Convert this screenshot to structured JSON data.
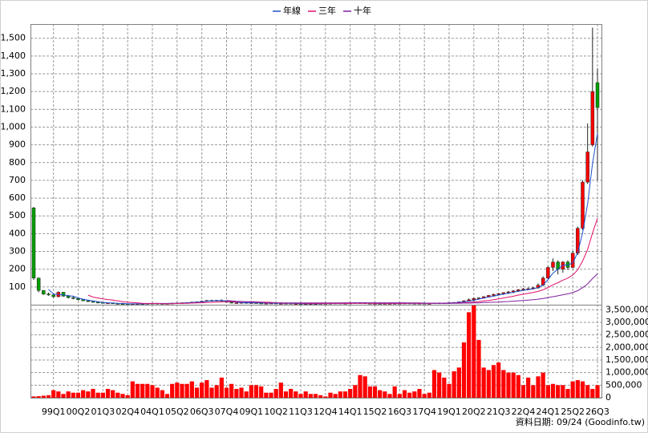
{
  "footer": "資料日期: 09/24 (Goodinfo.tw)",
  "chart_data": [
    {
      "type": "candlestick",
      "up_color": "#ff0000",
      "down_color": "#00a000",
      "grid": true,
      "legend": "top",
      "ylim": [
        0,
        1580
      ],
      "yticks": [
        100,
        200,
        300,
        400,
        500,
        600,
        700,
        800,
        900,
        {
          "value": 1000,
          "label": "1,000"
        },
        {
          "value": 1100,
          "label": "1,100"
        },
        {
          "value": 1200,
          "label": "1,200"
        },
        {
          "value": 1300,
          "label": "1,300"
        },
        {
          "value": 1400,
          "label": "1,400"
        },
        {
          "value": 1500,
          "label": "1,500"
        }
      ],
      "ohlc": [
        [
          545,
          550,
          140,
          150
        ],
        [
          150,
          152,
          70,
          80
        ],
        [
          80,
          82,
          55,
          60
        ],
        [
          60,
          68,
          50,
          55
        ],
        [
          55,
          60,
          40,
          45
        ],
        [
          45,
          75,
          42,
          70
        ],
        [
          70,
          72,
          45,
          48
        ],
        [
          48,
          55,
          35,
          40
        ],
        [
          40,
          50,
          30,
          35
        ],
        [
          35,
          40,
          25,
          28
        ],
        [
          28,
          32,
          20,
          22
        ],
        [
          22,
          25,
          15,
          18
        ],
        [
          18,
          22,
          12,
          14
        ],
        [
          14,
          18,
          10,
          12
        ],
        [
          12,
          14,
          8,
          9
        ],
        [
          9,
          12,
          7,
          10
        ],
        [
          10,
          11,
          6,
          7
        ],
        [
          7,
          9,
          5,
          6
        ],
        [
          6,
          7,
          3,
          4
        ],
        [
          4,
          5,
          2,
          3
        ],
        [
          3,
          6,
          3,
          5
        ],
        [
          5,
          7,
          4,
          6
        ],
        [
          6,
          7,
          4,
          5
        ],
        [
          5,
          8,
          4,
          7
        ],
        [
          7,
          9,
          6,
          8
        ],
        [
          8,
          9,
          6,
          7
        ],
        [
          7,
          8,
          5,
          6
        ],
        [
          6,
          8,
          5,
          7
        ],
        [
          7,
          10,
          6,
          9
        ],
        [
          9,
          11,
          8,
          10
        ],
        [
          10,
          12,
          8,
          11
        ],
        [
          11,
          13,
          9,
          12
        ],
        [
          12,
          16,
          11,
          15
        ],
        [
          15,
          18,
          13,
          16
        ],
        [
          16,
          22,
          15,
          20
        ],
        [
          20,
          26,
          18,
          24
        ],
        [
          24,
          28,
          20,
          22
        ],
        [
          22,
          27,
          20,
          25
        ],
        [
          25,
          30,
          20,
          22
        ],
        [
          22,
          24,
          12,
          14
        ],
        [
          14,
          16,
          8,
          9
        ],
        [
          9,
          12,
          7,
          11
        ],
        [
          11,
          14,
          10,
          12
        ],
        [
          12,
          13,
          9,
          10
        ],
        [
          10,
          12,
          9,
          11
        ],
        [
          11,
          12,
          8,
          9
        ],
        [
          9,
          10,
          7,
          8
        ],
        [
          8,
          9,
          7,
          8
        ],
        [
          8,
          10,
          7,
          9
        ],
        [
          9,
          10,
          6,
          7
        ],
        [
          7,
          8,
          6,
          7
        ],
        [
          7,
          9,
          6,
          8
        ],
        [
          8,
          9,
          6,
          6
        ],
        [
          6,
          7,
          5,
          6
        ],
        [
          6,
          7,
          5,
          5
        ],
        [
          5,
          6,
          4,
          5
        ],
        [
          5,
          7,
          5,
          6
        ],
        [
          6,
          7,
          5,
          6
        ],
        [
          6,
          8,
          5,
          7
        ],
        [
          7,
          8,
          6,
          7
        ],
        [
          7,
          9,
          6,
          8
        ],
        [
          8,
          10,
          7,
          9
        ],
        [
          9,
          10,
          7,
          8
        ],
        [
          8,
          9,
          7,
          8
        ],
        [
          8,
          10,
          7,
          9
        ],
        [
          9,
          12,
          8,
          11
        ],
        [
          11,
          14,
          9,
          10
        ],
        [
          10,
          11,
          7,
          8
        ],
        [
          8,
          9,
          6,
          7
        ],
        [
          7,
          8,
          6,
          7
        ],
        [
          7,
          8,
          6,
          6
        ],
        [
          6,
          8,
          6,
          7
        ],
        [
          7,
          8,
          6,
          7
        ],
        [
          7,
          9,
          6,
          8
        ],
        [
          8,
          9,
          7,
          8
        ],
        [
          8,
          10,
          7,
          9
        ],
        [
          9,
          10,
          7,
          8
        ],
        [
          8,
          9,
          7,
          7
        ],
        [
          7,
          9,
          6,
          8
        ],
        [
          8,
          9,
          6,
          7
        ],
        [
          7,
          8,
          6,
          7
        ],
        [
          7,
          11,
          6,
          10
        ],
        [
          10,
          12,
          8,
          9
        ],
        [
          9,
          11,
          8,
          10
        ],
        [
          10,
          12,
          9,
          11
        ],
        [
          11,
          14,
          10,
          13
        ],
        [
          13,
          18,
          12,
          16
        ],
        [
          16,
          25,
          15,
          22
        ],
        [
          22,
          35,
          20,
          28
        ],
        [
          28,
          40,
          18,
          35
        ],
        [
          35,
          42,
          30,
          38
        ],
        [
          38,
          48,
          35,
          45
        ],
        [
          45,
          55,
          42,
          52
        ],
        [
          52,
          62,
          48,
          58
        ],
        [
          58,
          66,
          52,
          62
        ],
        [
          62,
          70,
          55,
          68
        ],
        [
          68,
          78,
          60,
          72
        ],
        [
          72,
          82,
          65,
          78
        ],
        [
          78,
          88,
          72,
          84
        ],
        [
          84,
          95,
          78,
          88
        ],
        [
          88,
          98,
          82,
          90
        ],
        [
          90,
          100,
          85,
          95
        ],
        [
          95,
          120,
          90,
          110
        ],
        [
          110,
          160,
          105,
          150
        ],
        [
          150,
          215,
          145,
          210
        ],
        [
          210,
          260,
          190,
          240
        ],
        [
          240,
          250,
          170,
          200
        ],
        [
          200,
          245,
          180,
          240
        ],
        [
          240,
          250,
          195,
          210
        ],
        [
          210,
          300,
          205,
          290
        ],
        [
          290,
          440,
          280,
          430
        ],
        [
          430,
          700,
          420,
          690
        ],
        [
          690,
          1020,
          680,
          860
        ],
        [
          900,
          1560,
          890,
          1200
        ],
        [
          1250,
          1330,
          700,
          1110
        ]
      ],
      "series": [
        {
          "name": "年線",
          "color": "#2050d0",
          "values": [
            null,
            null,
            null,
            86,
            60,
            58,
            55,
            51,
            48,
            38,
            31,
            26,
            21,
            17,
            13,
            11,
            10,
            8,
            7,
            5,
            5,
            5,
            5,
            6,
            7,
            7,
            7,
            7,
            7,
            8,
            9,
            11,
            12,
            14,
            16,
            19,
            21,
            23,
            23,
            21,
            18,
            14,
            12,
            11,
            11,
            11,
            10,
            9,
            9,
            8,
            8,
            8,
            7,
            7,
            6,
            6,
            6,
            6,
            6,
            7,
            7,
            8,
            8,
            8,
            9,
            9,
            10,
            10,
            9,
            8,
            7,
            7,
            7,
            7,
            8,
            8,
            8,
            8,
            8,
            8,
            7,
            8,
            8,
            9,
            10,
            11,
            13,
            16,
            20,
            25,
            31,
            37,
            43,
            48,
            54,
            60,
            65,
            70,
            76,
            81,
            85,
            89,
            96,
            111,
            141,
            178,
            200,
            223,
            223,
            235,
            293,
            405,
            568,
            795,
            965
          ]
        },
        {
          "name": "三年",
          "color": "#e0106a",
          "values": [
            null,
            null,
            null,
            null,
            null,
            null,
            null,
            null,
            null,
            null,
            null,
            54,
            43,
            38,
            33,
            29,
            26,
            21,
            17,
            14,
            12,
            10,
            8,
            7,
            7,
            7,
            6,
            6,
            6,
            7,
            7,
            8,
            9,
            10,
            11,
            12,
            13,
            15,
            16,
            17,
            17,
            17,
            17,
            17,
            17,
            16,
            15,
            14,
            13,
            11,
            10,
            9,
            9,
            9,
            8,
            8,
            7,
            7,
            7,
            7,
            7,
            7,
            7,
            7,
            7,
            8,
            8,
            8,
            8,
            8,
            8,
            8,
            8,
            8,
            8,
            8,
            8,
            8,
            8,
            8,
            7,
            8,
            8,
            8,
            8,
            9,
            10,
            11,
            12,
            15,
            17,
            21,
            24,
            28,
            33,
            38,
            43,
            48,
            54,
            59,
            64,
            69,
            75,
            84,
            97,
            112,
            124,
            138,
            150,
            167,
            196,
            246,
            311,
            403,
            486
          ]
        },
        {
          "name": "十年",
          "color": "#8020a0",
          "values": [
            null,
            null,
            null,
            null,
            null,
            null,
            null,
            null,
            null,
            null,
            null,
            null,
            null,
            null,
            null,
            null,
            null,
            null,
            null,
            null,
            null,
            null,
            null,
            null,
            null,
            null,
            null,
            null,
            null,
            null,
            null,
            null,
            null,
            null,
            null,
            null,
            null,
            null,
            null,
            24,
            21,
            19,
            18,
            16,
            16,
            14,
            13,
            11,
            11,
            10,
            10,
            10,
            10,
            10,
            10,
            10,
            10,
            10,
            10,
            10,
            10,
            10,
            10,
            11,
            11,
            11,
            11,
            11,
            11,
            11,
            11,
            11,
            11,
            11,
            11,
            11,
            10,
            10,
            10,
            9,
            9,
            9,
            8,
            8,
            8,
            8,
            8,
            9,
            9,
            10,
            10,
            12,
            13,
            14,
            15,
            17,
            18,
            20,
            22,
            24,
            26,
            28,
            31,
            35,
            40,
            45,
            50,
            56,
            61,
            68,
            79,
            96,
            117,
            147,
            174
          ]
        }
      ]
    },
    {
      "type": "bar",
      "color": "#ff0000",
      "grid": true,
      "ylim": [
        0,
        3700000
      ],
      "yticks": [
        0,
        {
          "value": 500000,
          "label": "500,000"
        },
        {
          "value": 1000000,
          "label": "1,000,000"
        },
        {
          "value": 1500000,
          "label": "1,500,000"
        },
        {
          "value": 2000000,
          "label": "2,000,000"
        },
        {
          "value": 2500000,
          "label": "2,500,000"
        },
        {
          "value": 3000000,
          "label": "3,000,000"
        },
        {
          "value": 3500000,
          "label": "3,500,000"
        }
      ],
      "categories": [
        null,
        null,
        null,
        null,
        "99Q1",
        null,
        null,
        null,
        null,
        "00Q2",
        null,
        null,
        null,
        null,
        "01Q3",
        null,
        null,
        null,
        null,
        "02Q4",
        null,
        null,
        null,
        null,
        "04Q1",
        null,
        null,
        null,
        null,
        "05Q2",
        null,
        null,
        null,
        null,
        "06Q3",
        null,
        null,
        null,
        null,
        "07Q4",
        null,
        null,
        null,
        null,
        "09Q1",
        null,
        null,
        null,
        null,
        "10Q2",
        null,
        null,
        null,
        null,
        "11Q3",
        null,
        null,
        null,
        null,
        "12Q4",
        null,
        null,
        null,
        null,
        "14Q1",
        null,
        null,
        null,
        null,
        "15Q2",
        null,
        null,
        null,
        null,
        "16Q3",
        null,
        null,
        null,
        null,
        "17Q4",
        null,
        null,
        null,
        null,
        "19Q1",
        null,
        null,
        null,
        null,
        "20Q2",
        null,
        null,
        null,
        null,
        "21Q3",
        null,
        null,
        null,
        null,
        "22Q4",
        null,
        null,
        null,
        null,
        "24Q1",
        null,
        null,
        null,
        null,
        "25Q2",
        null,
        null,
        null,
        null,
        "26Q3"
      ],
      "values": [
        50000,
        60000,
        80000,
        100000,
        300000,
        250000,
        150000,
        250000,
        200000,
        200000,
        300000,
        250000,
        350000,
        200000,
        200000,
        350000,
        300000,
        200000,
        150000,
        100000,
        650000,
        550000,
        550000,
        550000,
        500000,
        400000,
        300000,
        150000,
        550000,
        600000,
        550000,
        550000,
        650000,
        400000,
        600000,
        700000,
        400000,
        500000,
        800000,
        400000,
        550000,
        350000,
        400000,
        250000,
        500000,
        500000,
        450000,
        200000,
        200000,
        350000,
        600000,
        250000,
        350000,
        250000,
        150000,
        250000,
        150000,
        150000,
        100000,
        50000,
        200000,
        150000,
        250000,
        250000,
        350000,
        500000,
        900000,
        850000,
        450000,
        450000,
        300000,
        250000,
        150000,
        450000,
        150000,
        300000,
        200000,
        250000,
        350000,
        150000,
        200000,
        1100000,
        1000000,
        800000,
        550000,
        1050000,
        1200000,
        2200000,
        3400000,
        3700000,
        2300000,
        1200000,
        1100000,
        1300000,
        1400000,
        1100000,
        1000000,
        1000000,
        900000,
        500000,
        800000,
        500000,
        850000,
        1000000,
        500000,
        550000,
        500000,
        500000,
        350000,
        650000,
        700000,
        650000,
        500000,
        350000,
        500000
      ]
    }
  ]
}
